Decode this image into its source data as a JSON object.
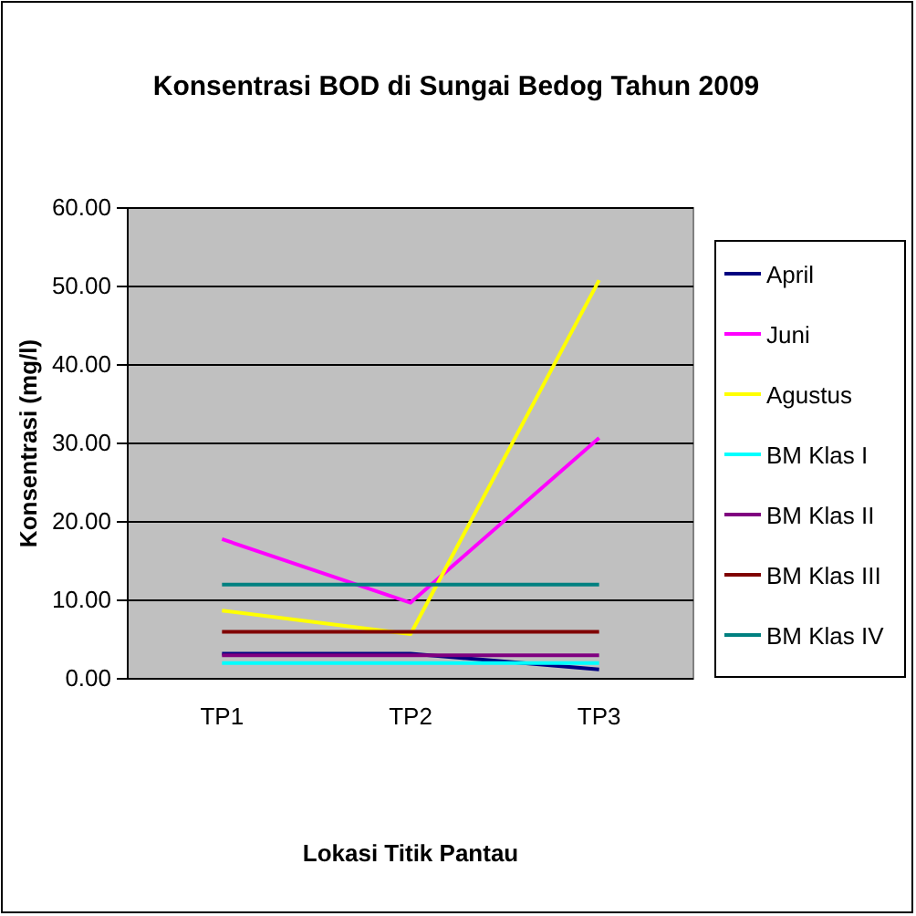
{
  "chart_data": {
    "type": "line",
    "title": "Konsentrasi BOD di Sungai Bedog Tahun 2009",
    "xlabel": "Lokasi Titik Pantau",
    "ylabel": "Konsentrasi  (mg/l)",
    "categories": [
      "TP1",
      "TP2",
      "TP3"
    ],
    "series": [
      {
        "name": "April",
        "color": "#000080",
        "values": [
          3.2,
          3.2,
          1.2
        ]
      },
      {
        "name": "Juni",
        "color": "#ff00ff",
        "values": [
          17.8,
          9.7,
          30.7
        ]
      },
      {
        "name": "Agustus",
        "color": "#ffff00",
        "values": [
          8.7,
          5.7,
          50.8
        ]
      },
      {
        "name": "BM Klas I",
        "color": "#00ffff",
        "values": [
          2,
          2,
          2
        ]
      },
      {
        "name": "BM Klas II",
        "color": "#800080",
        "values": [
          3,
          3,
          3
        ]
      },
      {
        "name": "BM Klas III",
        "color": "#800000",
        "values": [
          6,
          6,
          6
        ]
      },
      {
        "name": "BM Klas IV",
        "color": "#008080",
        "values": [
          12,
          12,
          12
        ]
      }
    ],
    "ylim": [
      0,
      60
    ],
    "yticks": [
      {
        "value": 0,
        "label": "0.00"
      },
      {
        "value": 10,
        "label": "10.00"
      },
      {
        "value": 20,
        "label": "20.00"
      },
      {
        "value": 30,
        "label": "30.00"
      },
      {
        "value": 40,
        "label": "40.00"
      },
      {
        "value": 50,
        "label": "50.00"
      },
      {
        "value": 60,
        "label": "60.00"
      }
    ],
    "grid": "y",
    "legend": "right",
    "marker": "none",
    "line_style": "solid"
  }
}
